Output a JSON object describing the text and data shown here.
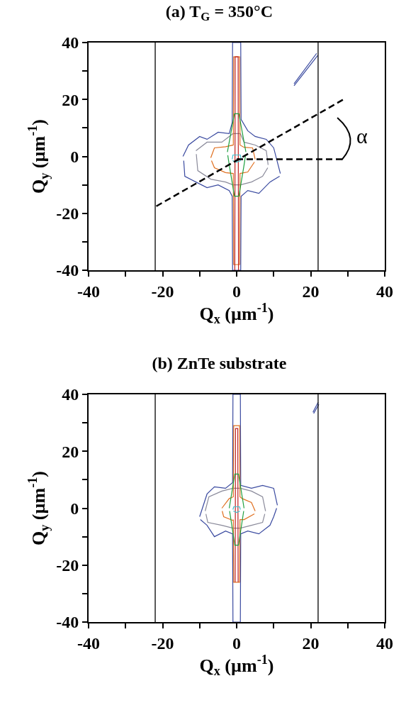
{
  "chart_data": [
    {
      "type": "line",
      "title": "(a) T$_{G}$ = 350°C",
      "xlabel": "Q$_{x}$ (µm$^{-1}$)",
      "ylabel": "Q$_{y}$ (µm$^{-1}$)",
      "xlim": [
        -40,
        40
      ],
      "ylim": [
        -40,
        40
      ],
      "xticks": [
        -40,
        {
          "value": -30,
          "label": null
        },
        -20,
        {
          "value": -10,
          "label": null
        },
        0,
        {
          "value": 10,
          "label": null
        },
        20,
        {
          "value": 30,
          "label": null
        },
        40
      ],
      "yticks": [
        -40,
        {
          "value": -30,
          "label": null
        },
        -20,
        {
          "value": -10,
          "label": null
        },
        0,
        {
          "value": 10,
          "label": null
        },
        20,
        {
          "value": 30,
          "label": null
        },
        40
      ],
      "series": [
        {
          "color": "#3a4aa0",
          "x": [
            -14.5,
            -13,
            -10,
            -8,
            -5,
            -2,
            -1.2,
            -1.1,
            1.1,
            1.2,
            3,
            5,
            8,
            10,
            11.8
          ],
          "values": [
            0,
            4,
            7,
            6,
            8.5,
            8,
            12,
            40,
            40,
            13,
            9,
            7,
            6,
            3,
            -6
          ]
        },
        {
          "color": "#3a4aa0",
          "x": [
            -14.3,
            -14,
            -11,
            -8,
            -5,
            -2,
            -1.2,
            -1.1,
            1.1,
            1.2,
            3,
            6,
            9,
            11.6
          ],
          "values": [
            -1.5,
            -7,
            -9,
            -11,
            -10,
            -12,
            -14,
            -40,
            -40,
            -14,
            -12,
            -13,
            -9,
            -7
          ]
        },
        {
          "color": "#3a4aa0",
          "x": [
            15.5,
            21.6
          ],
          "values": [
            25.5,
            36.2
          ]
        },
        {
          "color": "#3a4aa0",
          "x": [
            15.5,
            21.9
          ],
          "values": [
            24.8,
            35.5
          ]
        },
        {
          "color": "#8a8a9a",
          "x": [
            -11,
            -8,
            -4,
            -1,
            1,
            2,
            5,
            8,
            8.5
          ],
          "values": [
            2,
            5,
            5,
            8,
            8,
            5,
            4,
            2,
            -3
          ]
        },
        {
          "color": "#8a8a9a",
          "x": [
            -10.9,
            -10.5,
            -7,
            -3,
            -1,
            1,
            4,
            7,
            8.4
          ],
          "values": [
            0.8,
            -5,
            -8,
            -9,
            -10,
            -10,
            -9,
            -7,
            -4
          ]
        },
        {
          "color": "#e07020",
          "x": [
            -7,
            -6,
            -3,
            -0.9,
            -0.8,
            0.8,
            0.9,
            2,
            4.3,
            5
          ],
          "values": [
            -0.5,
            3,
            3.4,
            4,
            35,
            35,
            4,
            3.2,
            3,
            -1
          ]
        },
        {
          "color": "#e07020",
          "x": [
            -6.8,
            -6,
            -3,
            -0.9,
            -0.8,
            0.8,
            0.9,
            3,
            4.8
          ],
          "values": [
            -1.5,
            -4,
            -5.7,
            -6,
            -38,
            -38,
            -6,
            -5.5,
            -2
          ]
        },
        {
          "color": "#c02020",
          "x": [
            -0.5,
            -0.4,
            0.4,
            0.5
          ],
          "values": [
            -40,
            35,
            35,
            -40
          ]
        },
        {
          "color": "#20a040",
          "x": [
            -2.5,
            -0.6,
            0.6,
            2.5
          ],
          "values": [
            1.5,
            15,
            15,
            1.5
          ]
        },
        {
          "color": "#20a040",
          "x": [
            -2.4,
            -2,
            -0.6,
            0.6,
            2,
            2.4
          ],
          "values": [
            0.4,
            -3,
            -14,
            -14,
            -3,
            0.4
          ]
        },
        {
          "color": "#40c0d0",
          "x": [
            -1.2,
            -1,
            1,
            1.2
          ],
          "values": [
            -1,
            0.5,
            0.5,
            -1
          ]
        },
        {
          "color": "#40c0d0",
          "x": [
            -1.1,
            0,
            1.1
          ],
          "values": [
            -1.5,
            -2,
            -1.5
          ]
        },
        {
          "color": "#000000",
          "line_style": "dashed",
          "x": [
            -21.7,
            28.7
          ],
          "values": [
            -17.5,
            19.9
          ]
        },
        {
          "color": "#000000",
          "line_style": "dashed",
          "x": [
            0,
            29
          ],
          "values": [
            -1,
            -1
          ]
        }
      ],
      "ref_lines": [
        {
          "axis": "x",
          "value": -22,
          "color": "#000000"
        },
        {
          "axis": "x",
          "value": 22,
          "color": "#000000"
        }
      ],
      "annotations": [
        "α"
      ]
    },
    {
      "type": "line",
      "title": "(b) ZnTe substrate",
      "xlabel": "Q$_{x}$ (µm$^{-1}$)",
      "ylabel": "Q$_{y}$ (µm$^{-1}$)",
      "xlim": [
        -40,
        40
      ],
      "ylim": [
        -40,
        40
      ],
      "xticks": [
        -40,
        {
          "value": -30,
          "label": null
        },
        -20,
        {
          "value": -10,
          "label": null
        },
        0,
        {
          "value": 10,
          "label": null
        },
        20,
        {
          "value": 30,
          "label": null
        },
        40
      ],
      "yticks": [
        -40,
        {
          "value": -30,
          "label": null
        },
        -20,
        {
          "value": -10,
          "label": null
        },
        0,
        {
          "value": 10,
          "label": null
        },
        20,
        {
          "value": 30,
          "label": null
        },
        40
      ],
      "series": [
        {
          "color": "#3a4aa0",
          "x": [
            -10,
            -8,
            -6,
            -3,
            -1.1,
            -1,
            1,
            1.1,
            4,
            7,
            10,
            11
          ],
          "values": [
            -3,
            5,
            7.5,
            7,
            9,
            40,
            40,
            8,
            7,
            8,
            7,
            1
          ]
        },
        {
          "color": "#3a4aa0",
          "x": [
            -9.8,
            -8,
            -6,
            -3,
            -1.1,
            -1,
            1,
            1.1,
            3,
            6,
            9,
            10,
            10.8
          ],
          "values": [
            -4,
            -6,
            -10,
            -8,
            -9,
            -40,
            -40,
            -9,
            -8,
            -9,
            -6,
            -3,
            0
          ]
        },
        {
          "color": "#3a4aa0",
          "x": [
            20.6,
            22
          ],
          "values": [
            33.7,
            37.2
          ]
        },
        {
          "color": "#3a4aa0",
          "x": [
            20.8,
            22.2
          ],
          "values": [
            33.3,
            36.5
          ]
        },
        {
          "color": "#8a8a9a",
          "x": [
            -8.5,
            -7.5,
            -4,
            -1,
            1,
            4,
            7,
            7.8
          ],
          "values": [
            -1,
            4,
            6,
            7,
            7,
            6,
            4,
            -1
          ]
        },
        {
          "color": "#8a8a9a",
          "x": [
            -8.3,
            -7.8,
            -4,
            -1,
            1,
            4,
            7,
            7.6
          ],
          "values": [
            -2,
            -5,
            -6,
            -7,
            -7,
            -6,
            -5,
            -2
          ]
        },
        {
          "color": "#e07020",
          "x": [
            -4,
            -2,
            -0.9,
            -0.8,
            0.8,
            0.9,
            1.5,
            4,
            5
          ],
          "values": [
            0,
            3.4,
            4,
            29,
            29,
            4,
            3.4,
            2,
            -1
          ]
        },
        {
          "color": "#e07020",
          "x": [
            -3.9,
            -3.5,
            -1,
            -0.9,
            -0.8,
            0.8,
            0.9,
            2,
            4.8
          ],
          "values": [
            -1,
            -3,
            -4.3,
            -4,
            -26,
            -26,
            -4,
            -4,
            -2
          ]
        },
        {
          "color": "#c02020",
          "x": [
            -0.4,
            -0.3,
            0.3,
            0.4
          ],
          "values": [
            -26,
            28,
            28,
            -26
          ]
        },
        {
          "color": "#20a040",
          "x": [
            -2,
            -0.5,
            0.5,
            2
          ],
          "values": [
            0,
            12,
            12,
            0
          ]
        },
        {
          "color": "#20a040",
          "x": [
            -1.9,
            -0.5,
            0.5,
            1.9
          ],
          "values": [
            -1,
            -13,
            -13,
            -1
          ]
        },
        {
          "color": "#40c0d0",
          "x": [
            -1,
            -0.8,
            0.8,
            1
          ],
          "values": [
            -0.5,
            0.5,
            0.5,
            -0.5
          ]
        },
        {
          "color": "#40c0d0",
          "x": [
            -0.9,
            0,
            0.9
          ],
          "values": [
            -1,
            -1.5,
            -1
          ]
        }
      ],
      "ref_lines": [
        {
          "axis": "x",
          "value": -22,
          "color": "#000000"
        },
        {
          "axis": "x",
          "value": 22,
          "color": "#000000"
        }
      ]
    }
  ]
}
